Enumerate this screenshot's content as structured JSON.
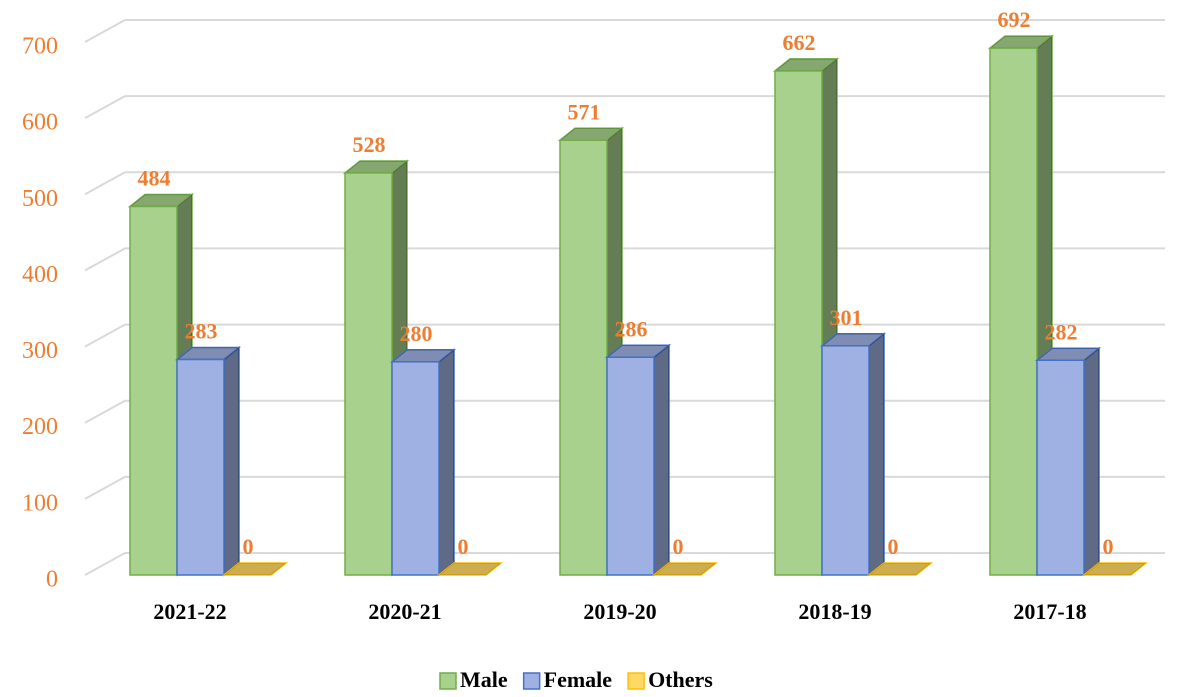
{
  "chart_data": {
    "type": "bar3d",
    "categories": [
      "2021-22",
      "2020-21",
      "2019-20",
      "2018-19",
      "2017-18"
    ],
    "series": [
      {
        "name": "Male",
        "color": "#a9d18e",
        "values": [
          484,
          528,
          571,
          662,
          692
        ]
      },
      {
        "name": "Female",
        "color": "#9fb1e2",
        "values": [
          283,
          280,
          286,
          301,
          282
        ]
      },
      {
        "name": "Others",
        "color": "#ffd966",
        "values": [
          0,
          0,
          0,
          0,
          0
        ]
      }
    ],
    "ylim": [
      0,
      700
    ],
    "yticks": [
      0,
      100,
      200,
      300,
      400,
      500,
      600,
      700
    ],
    "grid": true
  }
}
